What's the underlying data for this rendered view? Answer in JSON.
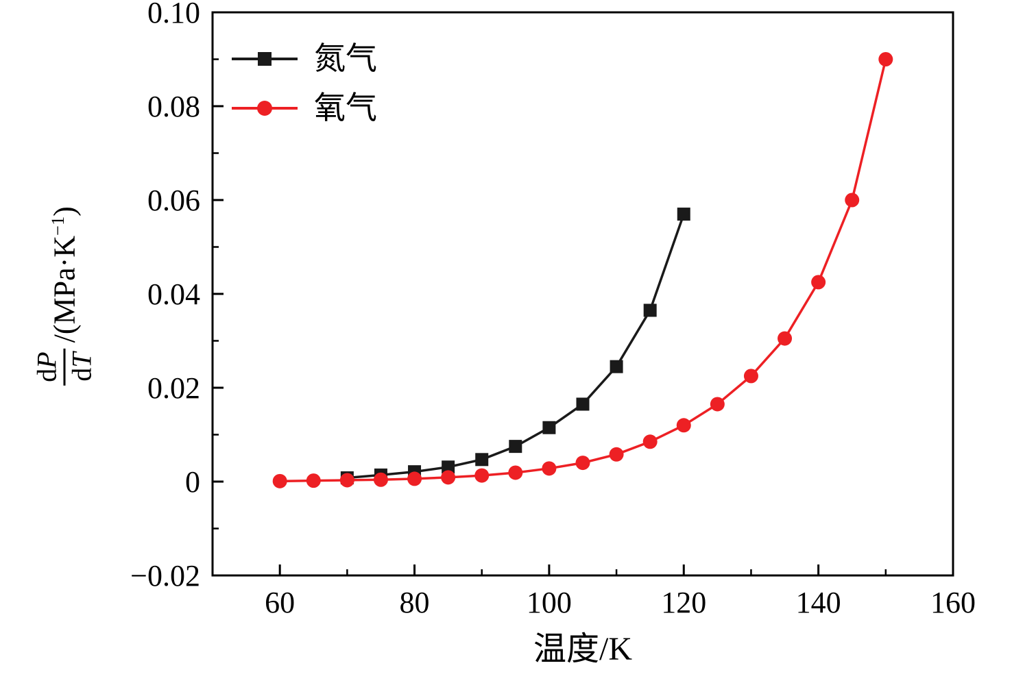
{
  "chart_data": {
    "type": "line",
    "title": "",
    "xlabel": "温度/K",
    "ylabel": "dP/dT /(MPa·K⁻¹)",
    "xlim": [
      50,
      160
    ],
    "ylim": [
      -0.02,
      0.1
    ],
    "grid": false,
    "legend_position": "top-left-inside",
    "xticks": {
      "values": [
        60,
        80,
        100,
        120,
        140,
        160
      ],
      "labels": [
        "60",
        "80",
        "100",
        "120",
        "140",
        "160"
      ],
      "minor_step": 10
    },
    "yticks": {
      "values": [
        -0.02,
        0,
        0.02,
        0.04,
        0.06,
        0.08,
        0.1
      ],
      "labels": [
        "−0.02",
        "0",
        "0.02",
        "0.04",
        "0.06",
        "0.08",
        "0.10"
      ],
      "minor_step": 0.01
    },
    "series": [
      {
        "name": "氮气",
        "color": "#1a1a1a",
        "marker": "square",
        "x": [
          70,
          75,
          80,
          85,
          90,
          95,
          100,
          105,
          110,
          115,
          120
        ],
        "y": [
          0.0008,
          0.0014,
          0.0021,
          0.0031,
          0.0047,
          0.0075,
          0.0115,
          0.0165,
          0.0245,
          0.0365,
          0.057
        ]
      },
      {
        "name": "氧气",
        "color": "#ed2024",
        "marker": "circle",
        "x": [
          60,
          65,
          70,
          75,
          80,
          85,
          90,
          95,
          100,
          105,
          110,
          115,
          120,
          125,
          130,
          135,
          140,
          145,
          150
        ],
        "y": [
          0.0001,
          0.0002,
          0.0003,
          0.0004,
          0.0006,
          0.0009,
          0.0013,
          0.0019,
          0.0028,
          0.004,
          0.0058,
          0.0085,
          0.012,
          0.0165,
          0.0225,
          0.0305,
          0.0425,
          0.06,
          0.09
        ]
      }
    ]
  },
  "axes": {
    "x": {
      "title": "温度/K"
    },
    "y": {
      "num_roman": "d",
      "num_italic": "P",
      "den_roman": "d",
      "den_italic": "T",
      "suffix_pre": "/(MPa·K",
      "suffix_sup": "−1",
      "suffix_post": ")"
    }
  }
}
